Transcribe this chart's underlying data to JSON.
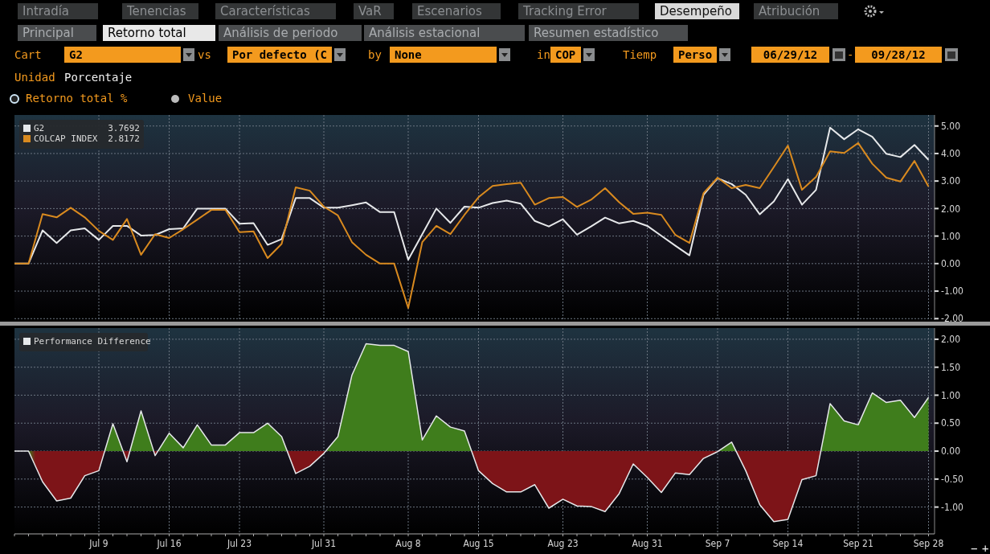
{
  "chart_data": [
    {
      "type": "other",
      "annotations": [
        "Intradía",
        "Tenencias",
        "Características",
        "VaR",
        "Escenarios",
        "Tracking Error",
        "Desempeño",
        "Atribución",
        "Principal",
        "Retorno total",
        "Análisis de periodo",
        "Análisis estacional",
        "Resumen estadístico",
        "Cart",
        "G2",
        "vs",
        "Por defecto (C",
        "by",
        "None",
        "in",
        "COP",
        "Tiemp",
        "Perso",
        "06/29/12",
        "-",
        "09/28/12",
        "Unidad",
        "Porcentaje",
        "Retorno total %",
        "Value",
        "−",
        "+"
      ]
    },
    {
      "type": "line",
      "categories": [
        null,
        null,
        null,
        null,
        null,
        null,
        null,
        null,
        null,
        null,
        null,
        null,
        null,
        null,
        null,
        null,
        null,
        null,
        null,
        null,
        null,
        null,
        null,
        null,
        null,
        null,
        null,
        null,
        null,
        null,
        null,
        null,
        null,
        null,
        null,
        null,
        null,
        null,
        null,
        null,
        null,
        null,
        null,
        null,
        null,
        null,
        null,
        null,
        null,
        null,
        null,
        null,
        null,
        null,
        null,
        null,
        null,
        null,
        null,
        null,
        null,
        null,
        null,
        null,
        null,
        null
      ],
      "ylim": [
        -2.05,
        5.4
      ],
      "yticks": [
        {
          "value": 5,
          "label": "5.00"
        },
        {
          "value": 4,
          "label": "4.00"
        },
        {
          "value": 3,
          "label": "3.00"
        },
        {
          "value": 2,
          "label": "2.00"
        },
        {
          "value": 1,
          "label": "1.00"
        },
        {
          "value": 0,
          "label": "0.00"
        },
        {
          "value": -1,
          "label": "-1.00"
        },
        {
          "value": -2,
          "label": "-2.00"
        }
      ],
      "tick_labels": "y",
      "grid": true,
      "legend": "top left",
      "annotations": [
        "3.7692",
        "2.8172"
      ],
      "series": [
        {
          "name": "G2",
          "color": "#e6e8ea",
          "values": [
            0,
            0,
            1.21,
            0.75,
            1.21,
            1.28,
            0.86,
            1.37,
            1.37,
            1.02,
            1.04,
            1.25,
            1.28,
            2.0,
            2.0,
            2.0,
            1.45,
            1.47,
            0.68,
            0.89,
            2.38,
            2.38,
            2.03,
            2.03,
            2.12,
            2.22,
            1.87,
            1.87,
            0.14,
            1.07,
            2.0,
            1.48,
            2.07,
            2.03,
            2.2,
            2.29,
            2.18,
            1.55,
            1.35,
            1.61,
            1.05,
            1.35,
            1.67,
            1.46,
            1.55,
            1.37,
            1.01,
            0.65,
            0.3,
            2.5,
            3.1,
            2.89,
            2.5,
            1.79,
            2.26,
            3.07,
            2.14,
            2.68,
            4.94,
            4.52,
            4.88,
            4.61,
            3.99,
            3.87,
            4.31,
            3.77
          ]
        },
        {
          "name": "COLCAP INDEX",
          "color": "#d98a1f",
          "values": [
            0,
            0,
            1.8,
            1.68,
            2.03,
            1.68,
            1.19,
            0.86,
            1.62,
            0.32,
            1.07,
            0.93,
            1.25,
            1.6,
            1.95,
            1.95,
            1.14,
            1.17,
            0.2,
            0.72,
            2.77,
            2.65,
            2.07,
            1.75,
            0.78,
            0.32,
            0,
            0,
            -1.61,
            0.78,
            1.37,
            1.07,
            1.77,
            2.41,
            2.82,
            2.89,
            2.94,
            2.14,
            2.38,
            2.42,
            2.06,
            2.32,
            2.74,
            2.23,
            1.81,
            1.85,
            1.77,
            1.04,
            0.75,
            2.56,
            3.12,
            2.74,
            2.86,
            2.74,
            3.51,
            4.29,
            2.68,
            3.15,
            4.08,
            4.02,
            4.38,
            3.63,
            3.12,
            2.98,
            3.73,
            2.8
          ]
        }
      ]
    },
    {
      "type": "area",
      "categories": [
        null,
        null,
        null,
        null,
        null,
        null,
        "Jul 9",
        null,
        null,
        null,
        null,
        "Jul 16",
        null,
        null,
        null,
        null,
        "Jul 23",
        null,
        null,
        null,
        null,
        null,
        "Jul 31",
        null,
        null,
        null,
        null,
        null,
        "Aug 8",
        null,
        null,
        null,
        null,
        "Aug 15",
        null,
        null,
        null,
        null,
        null,
        "Aug 23",
        null,
        null,
        null,
        null,
        null,
        "Aug 31",
        null,
        null,
        null,
        null,
        "Sep 7",
        null,
        null,
        null,
        null,
        "Sep 14",
        null,
        null,
        null,
        null,
        "Sep 21",
        null,
        null,
        null,
        null,
        "Sep 28"
      ],
      "ylim": [
        -1.48,
        2.2
      ],
      "yticks": [
        {
          "value": 2,
          "label": "2.00"
        },
        {
          "value": 1.5,
          "label": "1.50"
        },
        {
          "value": 1,
          "label": "1.00"
        },
        {
          "value": 0.5,
          "label": "0.50"
        },
        {
          "value": 0,
          "label": "0.00"
        },
        {
          "value": -0.5,
          "label": "-0.50"
        },
        {
          "value": -1,
          "label": "-1.00"
        }
      ],
      "grid": true,
      "legend": "top left",
      "series": [
        {
          "name": "Performance Difference",
          "color": "#e6e8ea",
          "colors": [
            "#3f7d1c",
            "#3f7d1c",
            "#7d1418",
            "#7d1418",
            "#7d1418",
            "#7d1418",
            "#7d1418",
            "#3f7d1c",
            "#7d1418",
            "#3f7d1c",
            "#7d1418",
            "#3f7d1c",
            "#3f7d1c",
            "#3f7d1c",
            "#3f7d1c",
            "#3f7d1c",
            "#3f7d1c",
            "#3f7d1c",
            "#3f7d1c",
            "#3f7d1c",
            "#7d1418",
            "#7d1418",
            "#7d1418",
            "#3f7d1c",
            "#3f7d1c",
            "#3f7d1c",
            "#3f7d1c",
            "#3f7d1c",
            "#3f7d1c",
            "#3f7d1c",
            "#3f7d1c",
            "#3f7d1c",
            "#3f7d1c",
            "#7d1418",
            "#7d1418",
            "#7d1418",
            "#7d1418",
            "#7d1418",
            "#7d1418",
            "#7d1418",
            "#7d1418",
            "#7d1418",
            "#7d1418",
            "#7d1418",
            "#7d1418",
            "#7d1418",
            "#7d1418",
            "#7d1418",
            "#7d1418",
            "#7d1418",
            "#7d1418",
            "#3f7d1c",
            "#7d1418",
            "#7d1418",
            "#7d1418",
            "#7d1418",
            "#7d1418",
            "#7d1418",
            "#3f7d1c",
            "#3f7d1c",
            "#3f7d1c",
            "#3f7d1c",
            "#3f7d1c",
            "#3f7d1c",
            "#3f7d1c",
            "#3f7d1c"
          ],
          "values": [
            0,
            0,
            -0.55,
            -0.89,
            -0.84,
            -0.44,
            -0.35,
            0.49,
            -0.19,
            0.72,
            -0.08,
            0.32,
            0.06,
            0.47,
            0.11,
            0.11,
            0.33,
            0.33,
            0.5,
            0.26,
            -0.4,
            -0.27,
            -0.04,
            0.26,
            1.36,
            1.92,
            1.89,
            1.89,
            1.78,
            0.2,
            0.63,
            0.43,
            0.36,
            -0.35,
            -0.58,
            -0.73,
            -0.73,
            -0.6,
            -1.02,
            -0.86,
            -0.98,
            -0.99,
            -1.08,
            -0.76,
            -0.23,
            -0.47,
            -0.74,
            -0.39,
            -0.42,
            -0.13,
            -0.01,
            0.16,
            -0.35,
            -0.96,
            -1.26,
            -1.22,
            -0.51,
            -0.44,
            0.85,
            0.54,
            0.47,
            1.04,
            0.87,
            0.91,
            0.6,
            0.96
          ]
        }
      ]
    }
  ]
}
